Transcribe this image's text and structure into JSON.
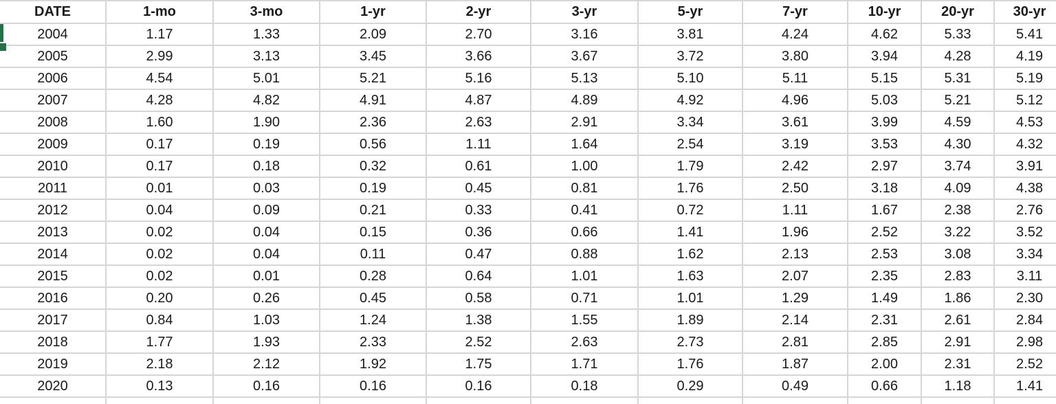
{
  "sheet": {
    "selection_color": "#217346",
    "gridline_color": "#d6d6d6"
  },
  "table": {
    "columns": [
      "DATE",
      "1-mo",
      "3-mo",
      "1-yr",
      "2-yr",
      "3-yr",
      "5-yr",
      "7-yr",
      "10-yr",
      "20-yr",
      "30-yr"
    ],
    "rows": [
      [
        "2004",
        "1.17",
        "1.33",
        "2.09",
        "2.70",
        "3.16",
        "3.81",
        "4.24",
        "4.62",
        "5.33",
        "5.41"
      ],
      [
        "2005",
        "2.99",
        "3.13",
        "3.45",
        "3.66",
        "3.67",
        "3.72",
        "3.80",
        "3.94",
        "4.28",
        "4.19"
      ],
      [
        "2006",
        "4.54",
        "5.01",
        "5.21",
        "5.16",
        "5.13",
        "5.10",
        "5.11",
        "5.15",
        "5.31",
        "5.19"
      ],
      [
        "2007",
        "4.28",
        "4.82",
        "4.91",
        "4.87",
        "4.89",
        "4.92",
        "4.96",
        "5.03",
        "5.21",
        "5.12"
      ],
      [
        "2008",
        "1.60",
        "1.90",
        "2.36",
        "2.63",
        "2.91",
        "3.34",
        "3.61",
        "3.99",
        "4.59",
        "4.53"
      ],
      [
        "2009",
        "0.17",
        "0.19",
        "0.56",
        "1.11",
        "1.64",
        "2.54",
        "3.19",
        "3.53",
        "4.30",
        "4.32"
      ],
      [
        "2010",
        "0.17",
        "0.18",
        "0.32",
        "0.61",
        "1.00",
        "1.79",
        "2.42",
        "2.97",
        "3.74",
        "3.91"
      ],
      [
        "2011",
        "0.01",
        "0.03",
        "0.19",
        "0.45",
        "0.81",
        "1.76",
        "2.50",
        "3.18",
        "4.09",
        "4.38"
      ],
      [
        "2012",
        "0.04",
        "0.09",
        "0.21",
        "0.33",
        "0.41",
        "0.72",
        "1.11",
        "1.67",
        "2.38",
        "2.76"
      ],
      [
        "2013",
        "0.02",
        "0.04",
        "0.15",
        "0.36",
        "0.66",
        "1.41",
        "1.96",
        "2.52",
        "3.22",
        "3.52"
      ],
      [
        "2014",
        "0.02",
        "0.04",
        "0.11",
        "0.47",
        "0.88",
        "1.62",
        "2.13",
        "2.53",
        "3.08",
        "3.34"
      ],
      [
        "2015",
        "0.02",
        "0.01",
        "0.28",
        "0.64",
        "1.01",
        "1.63",
        "2.07",
        "2.35",
        "2.83",
        "3.11"
      ],
      [
        "2016",
        "0.20",
        "0.26",
        "0.45",
        "0.58",
        "0.71",
        "1.01",
        "1.29",
        "1.49",
        "1.86",
        "2.30"
      ],
      [
        "2017",
        "0.84",
        "1.03",
        "1.24",
        "1.38",
        "1.55",
        "1.89",
        "2.14",
        "2.31",
        "2.61",
        "2.84"
      ],
      [
        "2018",
        "1.77",
        "1.93",
        "2.33",
        "2.52",
        "2.63",
        "2.73",
        "2.81",
        "2.85",
        "2.91",
        "2.98"
      ],
      [
        "2019",
        "2.18",
        "2.12",
        "1.92",
        "1.75",
        "1.71",
        "1.76",
        "1.87",
        "2.00",
        "2.31",
        "2.52"
      ],
      [
        "2020",
        "0.13",
        "0.16",
        "0.16",
        "0.16",
        "0.18",
        "0.29",
        "0.49",
        "0.66",
        "1.18",
        "1.41"
      ]
    ]
  }
}
